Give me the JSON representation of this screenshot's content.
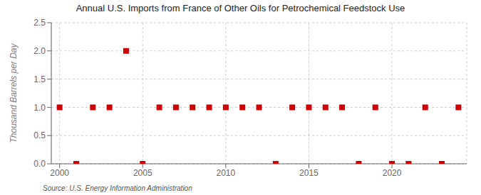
{
  "chart_data": {
    "type": "scatter",
    "title": "Annual U.S. Imports from France of Other Oils for Petrochemical Feedstock Use",
    "y_label": "Thousand Barrels per Day",
    "annotations": [
      "Source: U.S. Energy Information Administration"
    ],
    "x": [
      2000,
      2001,
      2002,
      2003,
      2004,
      2005,
      2006,
      2007,
      2008,
      2009,
      2010,
      2011,
      2012,
      2013,
      2014,
      2015,
      2016,
      2017,
      2018,
      2019,
      2020,
      2021,
      2022,
      2023,
      2024
    ],
    "values": [
      1.0,
      0.0,
      1.0,
      1.0,
      2.0,
      0.0,
      1.0,
      1.0,
      1.0,
      1.0,
      1.0,
      1.0,
      1.0,
      0.0,
      1.0,
      1.0,
      1.0,
      1.0,
      0.0,
      1.0,
      0.0,
      0.0,
      1.0,
      0.0,
      1.0
    ],
    "color": "#cc0000",
    "marker": "square",
    "xlim": [
      1999.5,
      2024.5
    ],
    "ylim": [
      0.0,
      2.5
    ],
    "xticks": [
      2000,
      2005,
      2010,
      2015,
      2020
    ],
    "yticks": [
      {
        "value": 0,
        "label": "0.0"
      },
      0.5,
      {
        "value": 1,
        "label": "1.0"
      },
      1.5,
      {
        "value": 2,
        "label": "2.0"
      },
      2.5
    ],
    "grid": true
  }
}
